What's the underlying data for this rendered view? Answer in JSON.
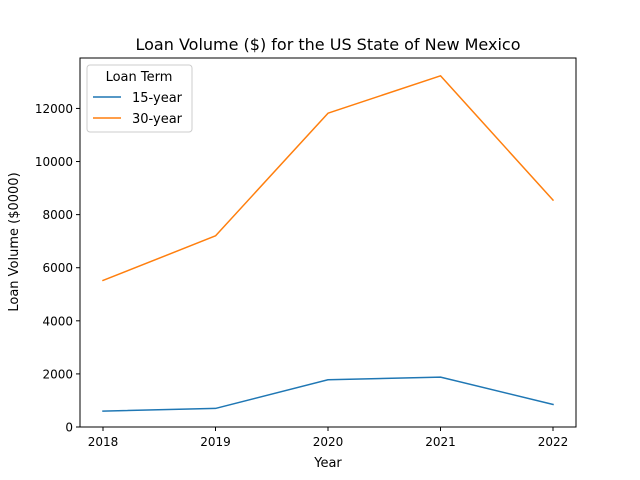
{
  "chart_data": {
    "type": "line",
    "title": "Loan Volume ($) for the US State of New Mexico",
    "xlabel": "Year",
    "ylabel": "Loan Volume ($0000)",
    "x": [
      "2018",
      "2019",
      "2020",
      "2021",
      "2022"
    ],
    "ylim": [
      0,
      13900
    ],
    "yticks": [
      0,
      2000,
      4000,
      6000,
      8000,
      10000,
      12000
    ],
    "grid": false,
    "legend": {
      "title": "Loan Term",
      "placement": "top-left"
    },
    "series": [
      {
        "name": "15-year",
        "color": "#1f77b4",
        "values": [
          600,
          700,
          1780,
          1880,
          850
        ]
      },
      {
        "name": "30-year",
        "color": "#ff7f0e",
        "values": [
          5520,
          7200,
          11820,
          13230,
          8550
        ]
      }
    ]
  }
}
